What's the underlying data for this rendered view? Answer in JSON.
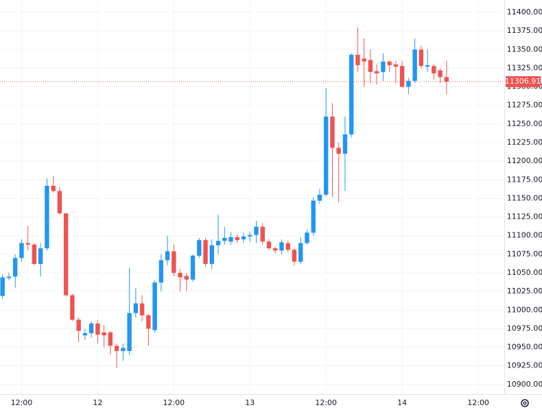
{
  "chart_data": {
    "type": "candlestick",
    "x": [
      -3,
      -2,
      -1,
      0,
      1,
      2,
      3,
      4,
      5,
      6,
      7,
      8,
      9,
      10,
      11,
      12,
      13,
      14,
      15,
      16,
      17,
      18,
      19,
      20,
      21,
      22,
      23,
      24,
      25,
      26,
      27,
      28,
      29,
      30,
      31,
      32,
      33,
      34,
      35,
      36,
      37,
      38,
      39,
      40,
      41,
      42,
      43,
      44,
      45,
      46,
      47,
      48,
      49,
      50,
      51,
      52,
      53,
      54,
      55,
      56,
      57,
      58,
      59,
      60,
      61,
      62,
      63,
      64,
      65,
      66,
      67
    ],
    "open": [
      11019,
      11043,
      11045,
      11070,
      11090,
      11088,
      11062,
      11083,
      11167,
      11160,
      11130,
      11020,
      10987,
      10966,
      10969,
      10982,
      10970,
      10970,
      10952,
      10945,
      10945,
      10996,
      11009,
      10993,
      10973,
      11037,
      11067,
      11079,
      11050,
      11046,
      11041,
      11073,
      11094,
      11062,
      11087,
      11093,
      11092,
      11098,
      11095,
      11099,
      11101,
      11112,
      11092,
      11083,
      11080,
      11090,
      11081,
      11065,
      11090,
      11104,
      11147,
      11155,
      11260,
      11218,
      11210,
      11236,
      11343,
      11338,
      11336,
      11321,
      11320,
      11334,
      11330,
      11328,
      11300,
      11308,
      11350,
      11327,
      11328,
      11322,
      11313
    ],
    "high": [
      11048,
      11050,
      11075,
      11095,
      11113,
      11090,
      11090,
      11177,
      11180,
      11165,
      11130,
      11022,
      10990,
      10975,
      10985,
      10987,
      10980,
      10972,
      10955,
      10955,
      11057,
      11030,
      11020,
      10995,
      11040,
      11075,
      11100,
      11088,
      11055,
      11050,
      11075,
      11097,
      11097,
      11095,
      11128,
      11112,
      11105,
      11102,
      11104,
      11105,
      11120,
      11117,
      11095,
      11085,
      11095,
      11093,
      11083,
      11098,
      11108,
      11152,
      11163,
      11298,
      11278,
      11225,
      11260,
      11345,
      11380,
      11365,
      11350,
      11330,
      11345,
      11335,
      11335,
      11335,
      11312,
      11365,
      11355,
      11350,
      11330,
      11325,
      11335
    ],
    "low": [
      11015,
      11040,
      11030,
      11065,
      11080,
      11060,
      11045,
      11080,
      11158,
      11128,
      11018,
      10985,
      10957,
      10960,
      10963,
      10955,
      10950,
      10940,
      10922,
      10932,
      10940,
      10990,
      10985,
      10952,
      10970,
      11025,
      11060,
      11045,
      11025,
      11025,
      11038,
      11070,
      11058,
      11055,
      11075,
      11088,
      11088,
      11090,
      11090,
      11092,
      11090,
      11088,
      11080,
      11076,
      11075,
      11078,
      11060,
      11062,
      11088,
      11100,
      11143,
      11153,
      11152,
      11145,
      11160,
      11232,
      11320,
      11300,
      11305,
      11303,
      11308,
      11320,
      11305,
      11298,
      11290,
      11305,
      11325,
      11320,
      11310,
      11305,
      11290
    ],
    "close": [
      11044,
      11045,
      11070,
      11090,
      11088,
      11062,
      11083,
      11167,
      11160,
      11130,
      11020,
      10987,
      10972,
      10969,
      10982,
      10967,
      10966,
      10952,
      10945,
      10949,
      10996,
      11009,
      10993,
      10975,
      11037,
      11067,
      11079,
      11050,
      11044,
      11041,
      11073,
      11094,
      11062,
      11087,
      11093,
      11097,
      11098,
      11094,
      11099,
      11101,
      11112,
      11092,
      11083,
      11080,
      11091,
      11081,
      11065,
      11090,
      11104,
      11147,
      11155,
      11260,
      11218,
      11210,
      11236,
      11343,
      11329,
      11334,
      11320,
      11318,
      11334,
      11329,
      11327,
      11300,
      11308,
      11350,
      11328,
      11329,
      11318,
      11313,
      11306.91
    ],
    "up_color": "#2196f3",
    "down_color": "#ef5350",
    "last_price": 11306.91,
    "xlim": [
      -3.4,
      76.1
    ],
    "xticks": [
      {
        "value": 0,
        "label": "12:00"
      },
      {
        "value": 12,
        "label": "12"
      },
      {
        "value": 24,
        "label": "12:00"
      },
      {
        "value": 36,
        "label": "13"
      },
      {
        "value": 48,
        "label": "12:00"
      },
      {
        "value": 60,
        "label": "14"
      },
      {
        "value": 72,
        "label": "12:00"
      }
    ],
    "ylim": [
      10887,
      11416.6
    ],
    "yticks": [
      {
        "value": 10900,
        "label": "10900.00"
      },
      {
        "value": 10925,
        "label": "10925.00"
      },
      {
        "value": 10950,
        "label": "10950.00"
      },
      {
        "value": 10975,
        "label": "10975.00"
      },
      {
        "value": 11000,
        "label": "11000.00"
      },
      {
        "value": 11025,
        "label": "11025.00"
      },
      {
        "value": 11050,
        "label": "11050.00"
      },
      {
        "value": 11075,
        "label": "11075.00"
      },
      {
        "value": 11100,
        "label": "11100.00"
      },
      {
        "value": 11125,
        "label": "11125.00"
      },
      {
        "value": 11150,
        "label": "11150.00"
      },
      {
        "value": 11175,
        "label": "11175.00"
      },
      {
        "value": 11200,
        "label": "11200.00"
      },
      {
        "value": 11225,
        "label": "11225.00"
      },
      {
        "value": 11250,
        "label": "11250.00"
      },
      {
        "value": 11275,
        "label": "11275.00"
      },
      {
        "value": 11300,
        "label": "11300.00"
      },
      {
        "value": 11325,
        "label": "11325.00"
      },
      {
        "value": 11350,
        "label": "11350.00"
      },
      {
        "value": 11375,
        "label": "11375.00"
      },
      {
        "value": 11400,
        "label": "11400.00"
      }
    ],
    "grid": true
  }
}
